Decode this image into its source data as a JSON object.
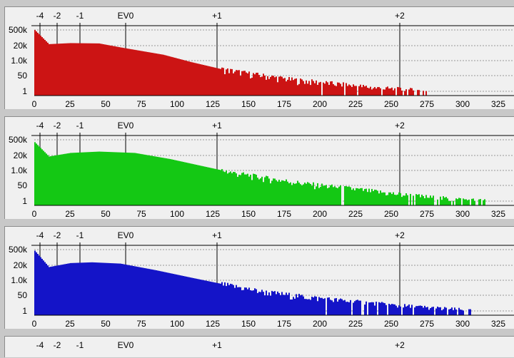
{
  "chart_data": [
    {
      "type": "bar",
      "color": "#cc1414",
      "xlim": [
        0,
        330
      ],
      "x_ticks": [
        "0",
        "25",
        "50",
        "75",
        "100",
        "125",
        "150",
        "175",
        "200",
        "225",
        "250",
        "275",
        "300",
        "325"
      ],
      "y_ticks": [
        "500k",
        "20k",
        "1.0k",
        "50",
        "1"
      ],
      "ev_labels": [
        "-4",
        "-2",
        "-1",
        "EV0",
        "+1",
        "+2"
      ],
      "ev_values": [
        4,
        16,
        32,
        64,
        128,
        256
      ],
      "series": [
        {
          "values": [
            500000,
            24000,
            30000,
            28000,
            12000,
            2500,
            500,
            120,
            35,
            12,
            5,
            2,
            1
          ]
        }
      ],
      "x": [
        0,
        10,
        25,
        45,
        60,
        90,
        110,
        130,
        155,
        180,
        210,
        240,
        275
      ]
    },
    {
      "type": "bar",
      "color": "#14c814",
      "xlim": [
        0,
        330
      ],
      "x_ticks": [
        "0",
        "25",
        "50",
        "75",
        "100",
        "125",
        "150",
        "175",
        "200",
        "225",
        "250",
        "275",
        "300",
        "325"
      ],
      "y_ticks": [
        "500k",
        "20k",
        "1.0k",
        "50",
        "1"
      ],
      "ev_labels": [
        "-4",
        "-2",
        "-1",
        "EV0",
        "+1",
        "+2"
      ],
      "ev_values": [
        4,
        16,
        32,
        64,
        128,
        256
      ],
      "series": [
        {
          "values": [
            300000,
            14000,
            30000,
            40000,
            30000,
            8000,
            1500,
            400,
            120,
            40,
            15,
            5,
            2,
            1
          ]
        }
      ],
      "x": [
        0,
        10,
        25,
        45,
        70,
        95,
        120,
        140,
        165,
        190,
        220,
        250,
        280,
        315
      ]
    },
    {
      "type": "bar",
      "color": "#1414c8",
      "xlim": [
        0,
        330
      ],
      "x_ticks": [
        "0",
        "25",
        "50",
        "75",
        "100",
        "125",
        "150",
        "175",
        "200",
        "225",
        "250",
        "275",
        "300",
        "325"
      ],
      "y_ticks": [
        "500k",
        "20k",
        "1.0k",
        "50",
        "1"
      ],
      "ev_labels": [
        "-4",
        "-2",
        "-1",
        "EV0",
        "+1",
        "+2"
      ],
      "ev_values": [
        4,
        16,
        32,
        64,
        128,
        256
      ],
      "series": [
        {
          "values": [
            400000,
            12000,
            28000,
            33000,
            25000,
            6000,
            1200,
            250,
            60,
            20,
            8,
            3,
            1
          ]
        }
      ],
      "x": [
        0,
        10,
        25,
        40,
        60,
        85,
        110,
        135,
        160,
        190,
        220,
        255,
        305
      ]
    },
    {
      "type": "bar",
      "xlim": [
        0,
        330
      ],
      "ev_labels": [
        "-4",
        "-2",
        "-1",
        "EV0",
        "+1",
        "+2"
      ],
      "ev_values": [
        4,
        16,
        32,
        64,
        128,
        256
      ]
    }
  ]
}
